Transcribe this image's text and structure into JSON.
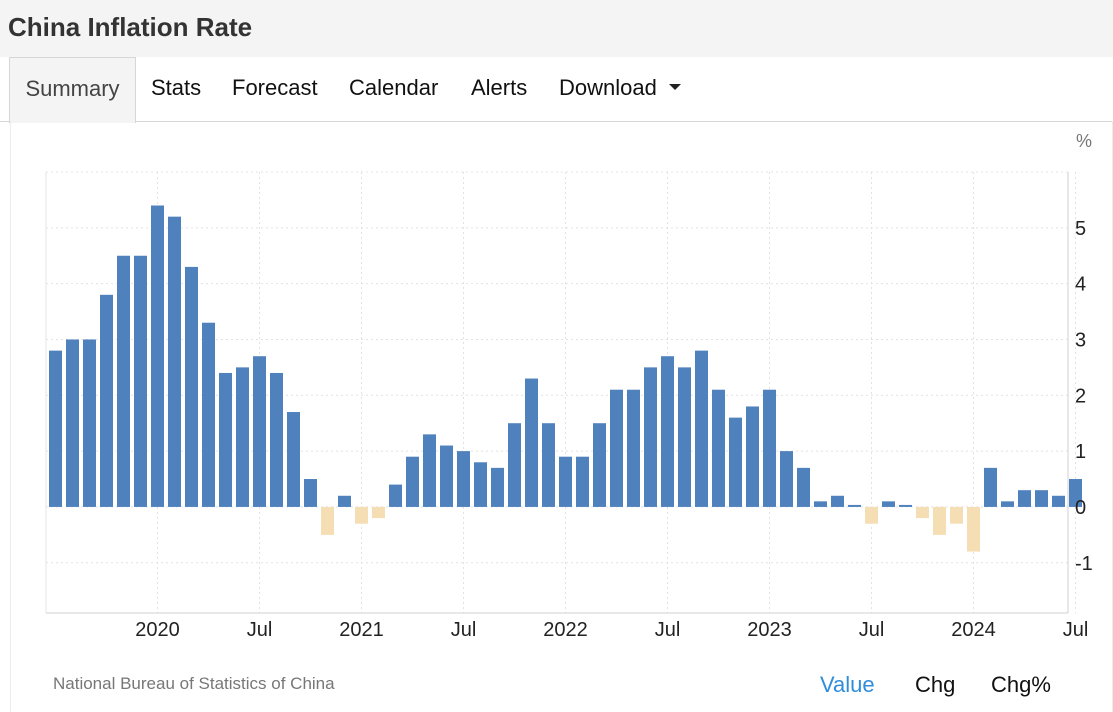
{
  "header": {
    "title": "China Inflation Rate"
  },
  "tabs": [
    {
      "label": "Summary",
      "active": true
    },
    {
      "label": "Stats"
    },
    {
      "label": "Forecast"
    },
    {
      "label": "Calendar"
    },
    {
      "label": "Alerts"
    },
    {
      "label": "Download",
      "icon": "caret-down-icon"
    }
  ],
  "footer": {
    "source": "National Bureau of Statistics of China",
    "toggles": [
      "Value",
      "Chg",
      "Chg%"
    ],
    "active_toggle": "Value"
  },
  "colors": {
    "positive": "#4f81bd",
    "negative": "#f5deb3",
    "accent": "#2f8ddb"
  },
  "chart_data": {
    "type": "bar",
    "unit_label": "%",
    "ylim": [
      -1.9,
      6
    ],
    "yticks": [
      -1,
      0,
      1,
      2,
      3,
      4,
      5
    ],
    "grid": true,
    "y_axis_side": "right",
    "x_tick_labels": [
      {
        "label": "2020",
        "at": "2020-01"
      },
      {
        "label": "Jul",
        "at": "2020-07"
      },
      {
        "label": "2021",
        "at": "2021-01"
      },
      {
        "label": "Jul",
        "at": "2021-07"
      },
      {
        "label": "2022",
        "at": "2022-01"
      },
      {
        "label": "Jul",
        "at": "2022-07"
      },
      {
        "label": "2023",
        "at": "2023-01"
      },
      {
        "label": "Jul",
        "at": "2023-07"
      },
      {
        "label": "2024",
        "at": "2024-01"
      },
      {
        "label": "Jul",
        "at": "2024-07"
      }
    ],
    "x": [
      "2019-07",
      "2019-08",
      "2019-09",
      "2019-10",
      "2019-11",
      "2019-12",
      "2020-01",
      "2020-02",
      "2020-03",
      "2020-04",
      "2020-05",
      "2020-06",
      "2020-07",
      "2020-08",
      "2020-09",
      "2020-10",
      "2020-11",
      "2020-12",
      "2021-01",
      "2021-02",
      "2021-03",
      "2021-04",
      "2021-05",
      "2021-06",
      "2021-07",
      "2021-08",
      "2021-09",
      "2021-10",
      "2021-11",
      "2021-12",
      "2022-01",
      "2022-02",
      "2022-03",
      "2022-04",
      "2022-05",
      "2022-06",
      "2022-07",
      "2022-08",
      "2022-09",
      "2022-10",
      "2022-11",
      "2022-12",
      "2023-01",
      "2023-02",
      "2023-03",
      "2023-04",
      "2023-05",
      "2023-06",
      "2023-07",
      "2023-08",
      "2023-09",
      "2023-10",
      "2023-11",
      "2023-12",
      "2024-01",
      "2024-02",
      "2024-03",
      "2024-04",
      "2024-05",
      "2024-06",
      "2024-07"
    ],
    "values": [
      2.8,
      3.0,
      3.0,
      3.8,
      4.5,
      4.5,
      5.4,
      5.2,
      4.3,
      3.3,
      2.4,
      2.5,
      2.7,
      2.4,
      1.7,
      0.5,
      -0.5,
      0.2,
      -0.3,
      -0.2,
      0.4,
      0.9,
      1.3,
      1.1,
      1.0,
      0.8,
      0.7,
      1.5,
      2.3,
      1.5,
      0.9,
      0.9,
      1.5,
      2.1,
      2.1,
      2.5,
      2.7,
      2.5,
      2.8,
      2.1,
      1.6,
      1.8,
      2.1,
      1.0,
      0.7,
      0.1,
      0.2,
      0.0,
      -0.3,
      0.1,
      0.0,
      -0.2,
      -0.5,
      -0.3,
      -0.8,
      0.7,
      0.1,
      0.3,
      0.3,
      0.2,
      0.5
    ]
  }
}
